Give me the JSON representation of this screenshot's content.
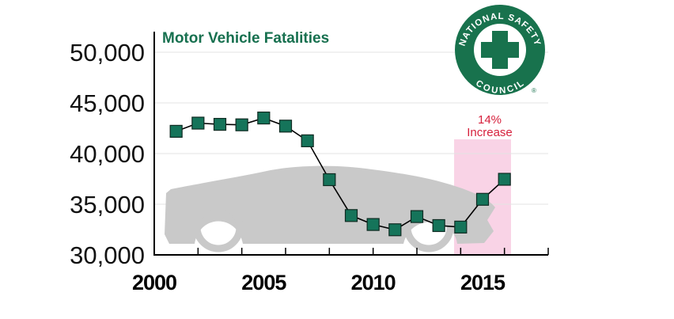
{
  "chart_data": {
    "type": "line",
    "title": "Motor Vehicle Fatalities",
    "x": [
      2001,
      2002,
      2003,
      2004,
      2005,
      2006,
      2007,
      2008,
      2009,
      2010,
      2011,
      2012,
      2013,
      2014,
      2015,
      2016
    ],
    "series": [
      {
        "values": [
          42196,
          43005,
          42884,
          42836,
          43510,
          42708,
          41259,
          37423,
          33883,
          32999,
          32479,
          33782,
          32893,
          32744,
          35485,
          37461
        ]
      }
    ],
    "xlim": [
      2000,
      2018
    ],
    "ylim": [
      30000,
      50000
    ],
    "xticks": [
      {
        "value": 2000,
        "label": "2000"
      },
      {
        "value": 2005,
        "label": "2005"
      },
      {
        "value": 2010,
        "label": "2010"
      },
      {
        "value": 2015,
        "label": "2015"
      }
    ],
    "yticks": [
      {
        "value": 30000,
        "label": "30,000"
      },
      {
        "value": 35000,
        "label": "35,000"
      },
      {
        "value": 40000,
        "label": "40,000"
      },
      {
        "value": 45000,
        "label": "45,000"
      },
      {
        "value": 50000,
        "label": "50,000"
      }
    ],
    "grid": true,
    "highlight": {
      "from": 2013.7,
      "to": 2016.3,
      "label_line1": "14%",
      "label_line2": "Increase",
      "color": "#f9d3e6"
    },
    "colors": {
      "marker": "#15745a",
      "marker_edge": "#0f2b22",
      "line": "#000000",
      "title": "#17704f",
      "note": "#d6203c",
      "car": "#c9c9c9"
    }
  },
  "logo": {
    "top_text": "NATIONAL SAFETY",
    "bottom_text": "COUNCIL",
    "registered": "®",
    "color": "#18724d"
  }
}
